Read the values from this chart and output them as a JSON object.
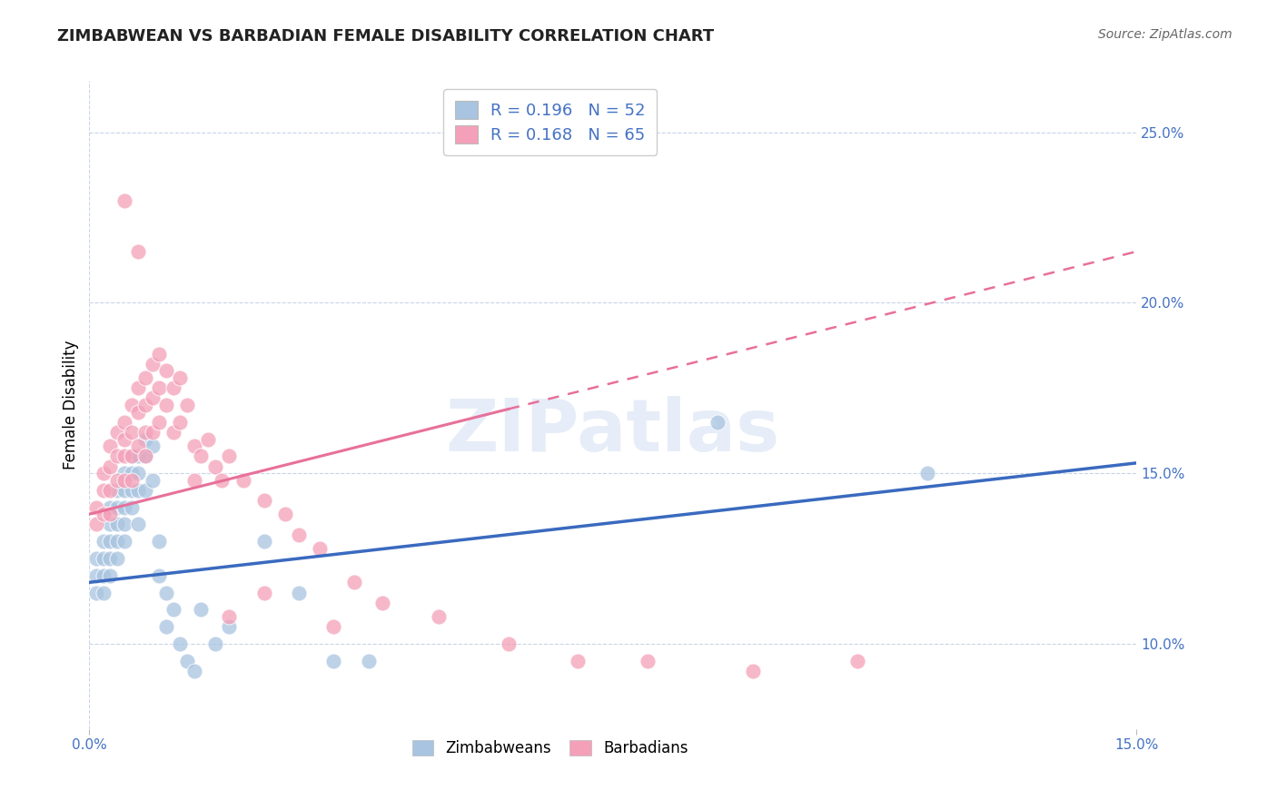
{
  "title": "ZIMBABWEAN VS BARBADIAN FEMALE DISABILITY CORRELATION CHART",
  "source": "Source: ZipAtlas.com",
  "ylabel": "Female Disability",
  "xlim": [
    0.0,
    0.15
  ],
  "ylim": [
    0.075,
    0.265
  ],
  "ytick_positions": [
    0.1,
    0.15,
    0.2,
    0.25
  ],
  "ytick_labels": [
    "10.0%",
    "15.0%",
    "20.0%",
    "25.0%"
  ],
  "zimbabwean_R": 0.196,
  "zimbabwean_N": 52,
  "barbadian_R": 0.168,
  "barbadian_N": 65,
  "zimbabwean_color": "#a8c4e0",
  "barbadian_color": "#f4a0b8",
  "zimbabwean_line_color": "#3a6abf",
  "barbadian_line_color": "#e8709a",
  "legend_zimbabweans": "Zimbabweans",
  "legend_barbadians": "Barbadians",
  "background_color": "#ffffff",
  "grid_color": "#c8d4e8",
  "watermark": "ZIPatlas",
  "zim_line_x0": 0.0,
  "zim_line_y0": 0.118,
  "zim_line_x1": 0.15,
  "zim_line_y1": 0.153,
  "bar_line_x0": 0.0,
  "bar_line_y0": 0.138,
  "bar_line_x1": 0.15,
  "bar_line_y1": 0.215,
  "bar_line_solid_end": 0.06,
  "zimbabwean_points_x": [
    0.001,
    0.001,
    0.001,
    0.002,
    0.002,
    0.002,
    0.002,
    0.003,
    0.003,
    0.003,
    0.003,
    0.003,
    0.004,
    0.004,
    0.004,
    0.004,
    0.004,
    0.005,
    0.005,
    0.005,
    0.005,
    0.005,
    0.006,
    0.006,
    0.006,
    0.006,
    0.007,
    0.007,
    0.007,
    0.007,
    0.008,
    0.008,
    0.008,
    0.009,
    0.009,
    0.01,
    0.01,
    0.011,
    0.011,
    0.012,
    0.013,
    0.014,
    0.015,
    0.016,
    0.018,
    0.02,
    0.025,
    0.03,
    0.035,
    0.04,
    0.09,
    0.12
  ],
  "zimbabwean_points_y": [
    0.125,
    0.12,
    0.115,
    0.13,
    0.125,
    0.12,
    0.115,
    0.14,
    0.135,
    0.13,
    0.125,
    0.12,
    0.145,
    0.14,
    0.135,
    0.13,
    0.125,
    0.15,
    0.145,
    0.14,
    0.135,
    0.13,
    0.155,
    0.15,
    0.145,
    0.14,
    0.155,
    0.15,
    0.145,
    0.135,
    0.16,
    0.155,
    0.145,
    0.158,
    0.148,
    0.13,
    0.12,
    0.115,
    0.105,
    0.11,
    0.1,
    0.095,
    0.092,
    0.11,
    0.1,
    0.105,
    0.13,
    0.115,
    0.095,
    0.095,
    0.165,
    0.15
  ],
  "barbadian_points_x": [
    0.001,
    0.001,
    0.002,
    0.002,
    0.002,
    0.003,
    0.003,
    0.003,
    0.003,
    0.004,
    0.004,
    0.004,
    0.005,
    0.005,
    0.005,
    0.005,
    0.006,
    0.006,
    0.006,
    0.006,
    0.007,
    0.007,
    0.007,
    0.008,
    0.008,
    0.008,
    0.008,
    0.009,
    0.009,
    0.009,
    0.01,
    0.01,
    0.01,
    0.011,
    0.011,
    0.012,
    0.012,
    0.013,
    0.013,
    0.014,
    0.015,
    0.015,
    0.016,
    0.017,
    0.018,
    0.019,
    0.02,
    0.022,
    0.025,
    0.028,
    0.03,
    0.033,
    0.038,
    0.042,
    0.05,
    0.06,
    0.07,
    0.08,
    0.095,
    0.11,
    0.005,
    0.007,
    0.02,
    0.025,
    0.035
  ],
  "barbadian_points_y": [
    0.14,
    0.135,
    0.15,
    0.145,
    0.138,
    0.158,
    0.152,
    0.145,
    0.138,
    0.162,
    0.155,
    0.148,
    0.165,
    0.16,
    0.155,
    0.148,
    0.17,
    0.162,
    0.155,
    0.148,
    0.175,
    0.168,
    0.158,
    0.178,
    0.17,
    0.162,
    0.155,
    0.182,
    0.172,
    0.162,
    0.185,
    0.175,
    0.165,
    0.18,
    0.17,
    0.175,
    0.162,
    0.178,
    0.165,
    0.17,
    0.158,
    0.148,
    0.155,
    0.16,
    0.152,
    0.148,
    0.155,
    0.148,
    0.142,
    0.138,
    0.132,
    0.128,
    0.118,
    0.112,
    0.108,
    0.1,
    0.095,
    0.095,
    0.092,
    0.095,
    0.23,
    0.215,
    0.108,
    0.115,
    0.105
  ]
}
